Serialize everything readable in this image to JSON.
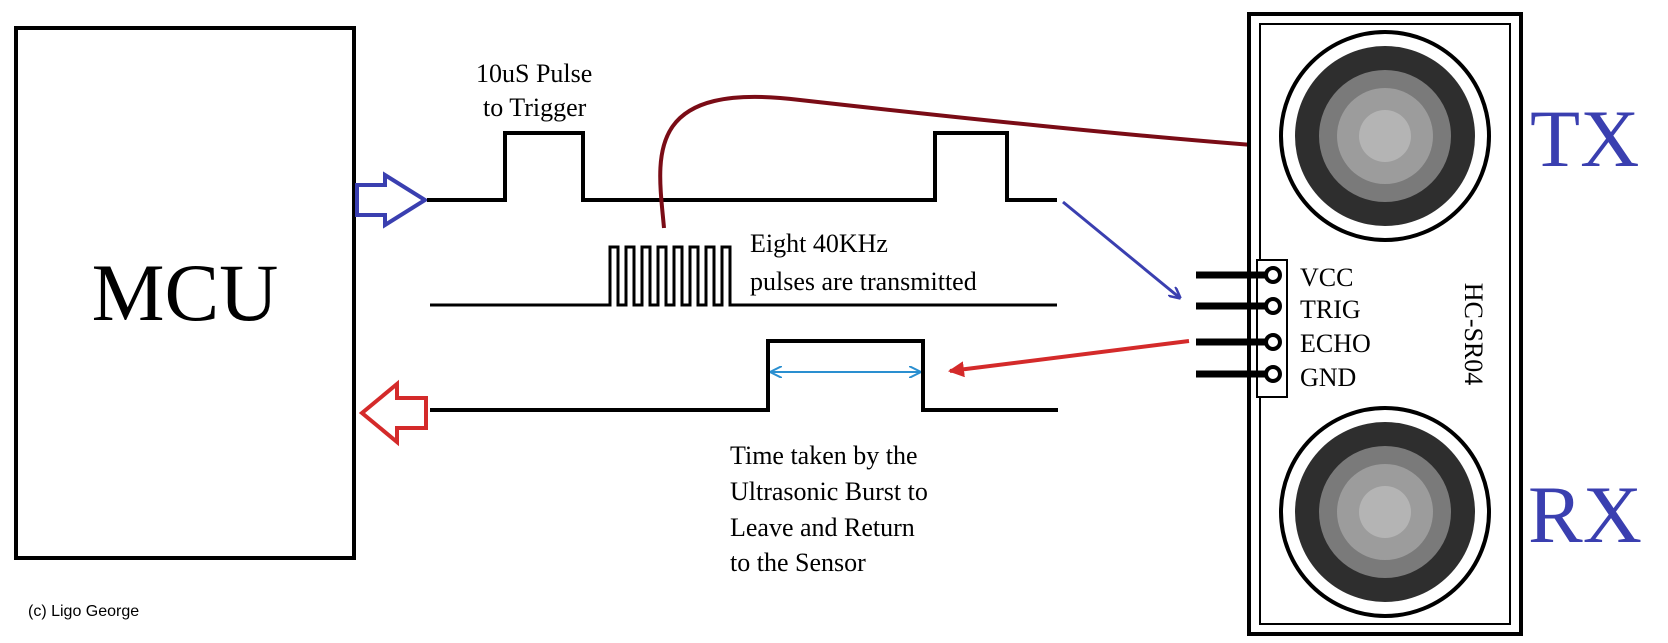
{
  "mcu": {
    "label": "MCU"
  },
  "trigger_note": {
    "line1": "10uS Pulse",
    "line2": "to Trigger"
  },
  "burst_note": {
    "line1": "Eight 40KHz",
    "line2": "pulses are transmitted"
  },
  "echo_note": {
    "line1": "Time taken by the",
    "line2": "Ultrasonic Burst to",
    "line3": "Leave and Return",
    "line4": "to the Sensor"
  },
  "sensor": {
    "name": "HC-SR04",
    "pins": [
      "VCC",
      "TRIG",
      "ECHO",
      "GND"
    ],
    "tx_label": "TX",
    "rx_label": "RX"
  },
  "credit": "(c) Ligo George",
  "colors": {
    "line": "#000000",
    "trigger_arrow": "#3a3fb0",
    "echo_arrow": "#d42a2a",
    "transmit_arrow": "#7a0c16",
    "measure_arrow": "#2a8fd0",
    "txrx_label": "#3a3fb0"
  }
}
